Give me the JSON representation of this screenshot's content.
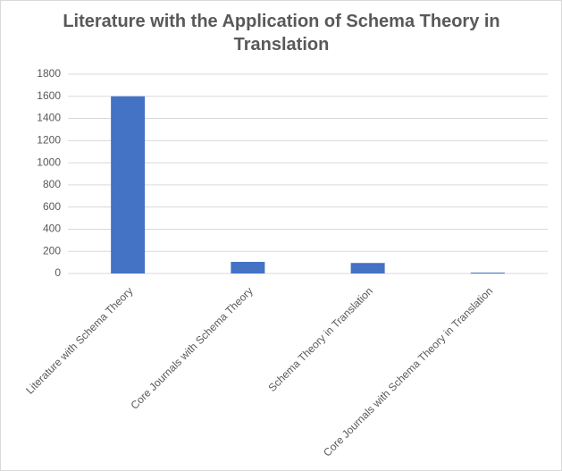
{
  "chart_data": {
    "type": "bar",
    "title": "Literature with the Application of Schema Theory in Translation",
    "categories": [
      "Literature with Schema Theory",
      "Core Journals with Schema Theory",
      "Schema Theory in Translation",
      "Core Journals with Schema Theory in Translation"
    ],
    "values": [
      1600,
      105,
      95,
      8
    ],
    "color": "#4472c4",
    "ylim": [
      0,
      1800
    ],
    "yticks": [
      0,
      200,
      400,
      600,
      800,
      1000,
      1200,
      1400,
      1600,
      1800
    ],
    "grid": true
  }
}
